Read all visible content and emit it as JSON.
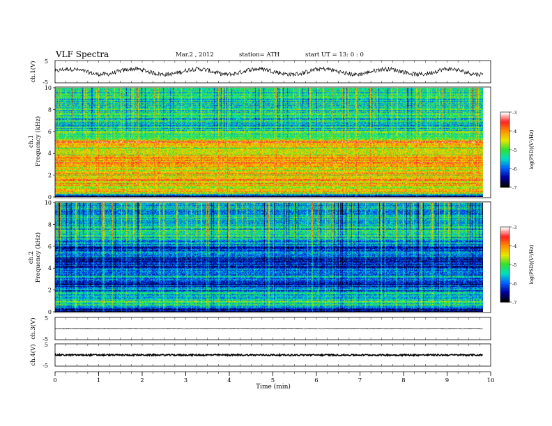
{
  "header": {
    "title": "VLF  Spectra",
    "date": "Mar.2  , 2012",
    "station": "station= ATH",
    "start": "start  UT  =    13: 0  : 0"
  },
  "colorbar": {
    "label": "log(PSD)(V²/Hz)",
    "ticks": [
      "-3",
      "-4",
      "-5",
      "-6",
      "-7"
    ],
    "colors": [
      "#ffffff",
      "#ff2020",
      "#ff9000",
      "#e8e800",
      "#30e030",
      "#00e0c0",
      "#0060ff",
      "#0000a0",
      "#000000"
    ]
  },
  "chart_data": [
    {
      "type": "line",
      "name": "ch1 waveform",
      "ylabel": "ch.1(V)",
      "ylim": [
        -5,
        5
      ],
      "yticks": [
        "5",
        "-5"
      ],
      "xlim": [
        0,
        10
      ],
      "x_end": 9.83,
      "mean": 0,
      "amplitude": 2.2
    },
    {
      "type": "heatmap",
      "name": "ch1 spectrogram",
      "label": "ch.1",
      "ylabel": "Frequency  (kHz)",
      "ylim": [
        0,
        10
      ],
      "yticks": [
        "0",
        "2",
        "4",
        "6",
        "8",
        "10"
      ],
      "xlim": [
        0,
        10
      ],
      "x_end": 9.83,
      "zlim": [
        -7,
        -3
      ],
      "profile": [
        {
          "f": 0.0,
          "v": -6.8
        },
        {
          "f": 0.3,
          "v": -4.4
        },
        {
          "f": 1.0,
          "v": -4.5
        },
        {
          "f": 1.5,
          "v": -4.0
        },
        {
          "f": 2.0,
          "v": -4.3
        },
        {
          "f": 2.5,
          "v": -4.6
        },
        {
          "f": 3.0,
          "v": -4.0
        },
        {
          "f": 3.5,
          "v": -4.2
        },
        {
          "f": 4.0,
          "v": -4.7
        },
        {
          "f": 4.5,
          "v": -4.5
        },
        {
          "f": 5.0,
          "v": -3.9
        },
        {
          "f": 5.5,
          "v": -5.0
        },
        {
          "f": 6.0,
          "v": -5.2
        },
        {
          "f": 6.5,
          "v": -5.6
        },
        {
          "f": 7.0,
          "v": -5.4
        },
        {
          "f": 8.0,
          "v": -5.3
        },
        {
          "f": 9.0,
          "v": -5.4
        },
        {
          "f": 10.0,
          "v": -5.3
        }
      ]
    },
    {
      "type": "heatmap",
      "name": "ch2 spectrogram",
      "label": "ch.2",
      "ylabel": "Frequency  (kHz)",
      "ylim": [
        0,
        10
      ],
      "yticks": [
        "0",
        "2",
        "4",
        "6",
        "8",
        "10"
      ],
      "xlim": [
        0,
        10
      ],
      "x_end": 9.83,
      "zlim": [
        -7,
        -3
      ],
      "profile": [
        {
          "f": 0.0,
          "v": -7.0
        },
        {
          "f": 0.5,
          "v": -5.4
        },
        {
          "f": 1.0,
          "v": -5.2
        },
        {
          "f": 1.5,
          "v": -5.5
        },
        {
          "f": 2.0,
          "v": -6.0
        },
        {
          "f": 2.5,
          "v": -6.3
        },
        {
          "f": 3.0,
          "v": -6.0
        },
        {
          "f": 3.5,
          "v": -5.6
        },
        {
          "f": 4.0,
          "v": -6.2
        },
        {
          "f": 4.5,
          "v": -6.5
        },
        {
          "f": 5.0,
          "v": -6.3
        },
        {
          "f": 5.5,
          "v": -6.0
        },
        {
          "f": 6.0,
          "v": -6.2
        },
        {
          "f": 6.5,
          "v": -5.8
        },
        {
          "f": 7.0,
          "v": -5.4
        },
        {
          "f": 8.0,
          "v": -5.6
        },
        {
          "f": 9.0,
          "v": -5.7
        },
        {
          "f": 10.0,
          "v": -5.6
        }
      ]
    },
    {
      "type": "line",
      "name": "ch3 waveform",
      "ylabel": "ch.3(V)",
      "ylim": [
        -5,
        5
      ],
      "yticks": [
        "5",
        "-5"
      ],
      "xlim": [
        0,
        10
      ],
      "x_end": 9.83,
      "mean": 0,
      "amplitude": 0.15
    },
    {
      "type": "line",
      "name": "ch4 waveform",
      "ylabel": "ch.4(V)",
      "ylim": [
        -5,
        5
      ],
      "yticks": [
        "5",
        "-5"
      ],
      "xlim": [
        0,
        10
      ],
      "x_end": 9.83,
      "mean": 0,
      "amplitude": 0.35
    }
  ],
  "xaxis": {
    "label": "Time  (min)",
    "ticks": [
      "0",
      "1",
      "2",
      "3",
      "4",
      "5",
      "6",
      "7",
      "8",
      "9",
      "10"
    ]
  }
}
